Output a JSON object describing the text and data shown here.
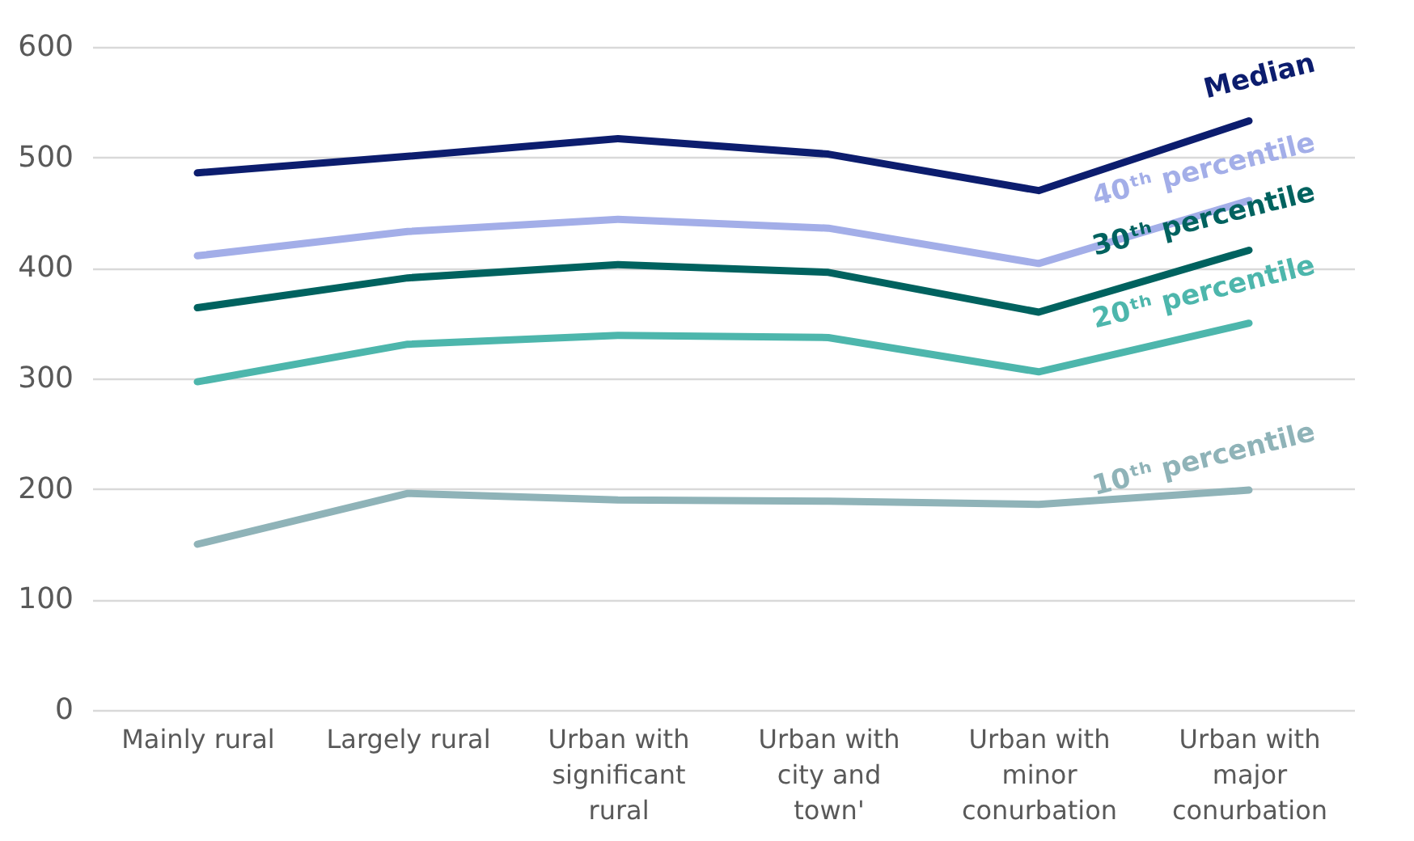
{
  "chart_data": {
    "type": "line",
    "categories": [
      "Mainly rural",
      "Largely rural",
      "Urban with significant rural",
      "Urban with city and town'",
      "Urban with minor conurbation",
      "Urban with major conurbation"
    ],
    "series": [
      {
        "name": "Median",
        "color": "#0c1d6e",
        "values": [
          486,
          501,
          517,
          503,
          470,
          533
        ]
      },
      {
        "name": "40ᵗʰ percentile",
        "color": "#a3aee8",
        "values": [
          411,
          433,
          444,
          436,
          404,
          461
        ]
      },
      {
        "name": "30ᵗʰ percentile",
        "color": "#00625f",
        "values": [
          364,
          391,
          403,
          396,
          360,
          416
        ]
      },
      {
        "name": "20ᵗʰ percentile",
        "color": "#4db6ac",
        "values": [
          297,
          331,
          339,
          337,
          306,
          350
        ]
      },
      {
        "name": "10ᵗʰ percentile",
        "color": "#8fb3b8",
        "values": [
          150,
          196,
          190,
          189,
          186,
          199
        ]
      }
    ],
    "ylim": [
      0,
      600
    ],
    "yticks": [
      0,
      100,
      200,
      300,
      400,
      500,
      600
    ],
    "grid": "y",
    "marker": "none",
    "line_style": "solid"
  }
}
